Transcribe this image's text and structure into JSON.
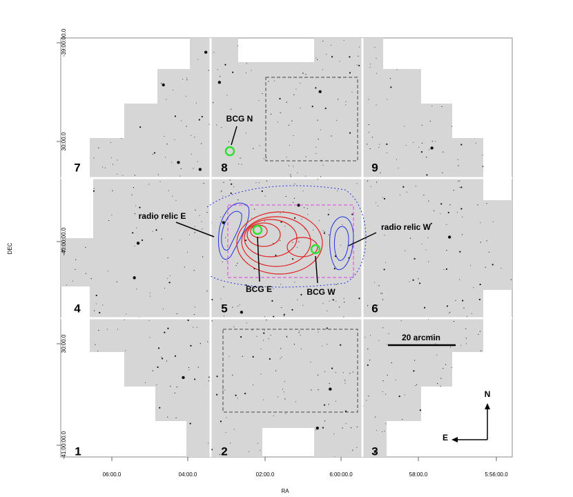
{
  "axes": {
    "x_label": "RA",
    "y_label": "DEC",
    "x_ticks": [
      "06:00.0",
      "04:00.0",
      "02:00.0",
      "6:00:00.0",
      "58:00.0",
      "5:56:00.0"
    ],
    "y_ticks": [
      "-39:00:00.0",
      "30:00.0",
      "-40:00:00.0",
      "30:00.0",
      "-41:00:00.0"
    ]
  },
  "fields": [
    "1",
    "2",
    "3",
    "4",
    "5",
    "6",
    "7",
    "8",
    "9"
  ],
  "annotations": {
    "bcg_n": "BCG N",
    "bcg_e": "BCG E",
    "bcg_w": "BCG W",
    "relic_e": "radio relic E",
    "relic_w": "radio relic W"
  },
  "scale_bar": "20 arcmin",
  "compass": {
    "north": "N",
    "east": "E"
  }
}
